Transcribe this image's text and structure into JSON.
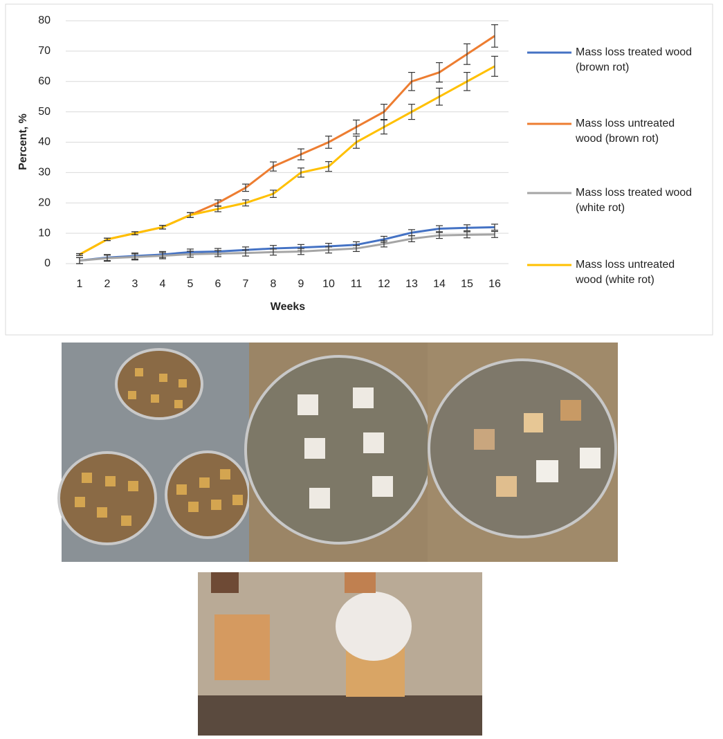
{
  "chart_data": {
    "type": "line",
    "x_label": "Weeks",
    "y_label": "Percent, %",
    "categories": [
      1,
      2,
      3,
      4,
      5,
      6,
      7,
      8,
      9,
      10,
      11,
      12,
      13,
      14,
      15,
      16
    ],
    "ylim": [
      0,
      80
    ],
    "yticks": [
      0,
      10,
      20,
      30,
      40,
      50,
      60,
      70,
      80
    ],
    "grid": true,
    "series": [
      {
        "name": "Mass loss treated wood (brown rot)",
        "color": "#4472c4",
        "values": [
          1,
          2,
          2.5,
          3,
          3.8,
          4,
          4.5,
          5,
          5.3,
          5.7,
          6.2,
          8,
          10.2,
          11.5,
          11.8,
          12
        ],
        "errors": [
          1,
          1,
          1,
          1,
          1,
          1,
          1,
          1,
          1,
          1,
          1,
          1,
          1,
          1,
          1,
          1
        ]
      },
      {
        "name": "Mass loss untreated wood (brown rot)",
        "color": "#ed7d31",
        "values": [
          3,
          8,
          10,
          12,
          16,
          20,
          25,
          32,
          36,
          40,
          45,
          50,
          60,
          63,
          69,
          75
        ],
        "errors": [
          0.3,
          0.4,
          0.5,
          0.6,
          0.8,
          1,
          1.2,
          1.5,
          1.8,
          2,
          2.3,
          2.5,
          3,
          3.2,
          3.4,
          3.7
        ]
      },
      {
        "name": "Mass loss treated wood (white rot)",
        "color": "#a5a5a5",
        "values": [
          1,
          1.8,
          2.2,
          2.6,
          3.1,
          3.3,
          3.5,
          3.8,
          4,
          4.5,
          5,
          6.5,
          8.2,
          9.3,
          9.5,
          9.6
        ],
        "errors": [
          1,
          1,
          1,
          1,
          1,
          1,
          1,
          1,
          1,
          1,
          1,
          1,
          1,
          1,
          1,
          1
        ]
      },
      {
        "name": "Mass loss untreated wood (white rot)",
        "color": "#ffc000",
        "values": [
          3,
          8,
          10,
          12,
          16,
          18,
          20,
          23,
          30,
          32,
          40,
          45,
          50,
          55,
          60,
          65
        ],
        "errors": [
          0.3,
          0.4,
          0.5,
          0.6,
          0.8,
          0.9,
          1,
          1.2,
          1.5,
          1.6,
          2,
          2.3,
          2.5,
          2.8,
          3,
          3.3
        ]
      }
    ]
  }
}
